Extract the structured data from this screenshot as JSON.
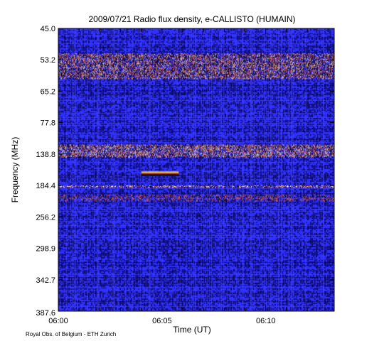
{
  "chart_data": {
    "type": "heatmap",
    "title": "2009/07/21  Radio flux density, e-CALLISTO (HUMAIN)",
    "xlabel": "Time (UT)",
    "ylabel": "Frequency (MHz)",
    "x_ticks": [
      "06:00",
      "06:05",
      "06:10"
    ],
    "x_tick_minutes": [
      0,
      5,
      10
    ],
    "x_range_minutes": [
      0,
      13.3
    ],
    "y_ticks": [
      "45.0",
      "53.2",
      "65.2",
      "77.8",
      "138.8",
      "184.4",
      "256.2",
      "298.9",
      "342.7",
      "387.6"
    ],
    "colormap": [
      "#10108a",
      "#2c2cff",
      "#000000",
      "#c04020",
      "#ffe060",
      "#ffffff"
    ],
    "features": [
      {
        "kind": "band",
        "freq_tick_from": 0.8,
        "freq_tick_to": 1.6,
        "intensity": 0.85
      },
      {
        "kind": "band",
        "freq_tick_from": 3.7,
        "freq_tick_to": 4.1,
        "intensity": 0.95
      },
      {
        "kind": "band",
        "freq_tick_from": 5.0,
        "freq_tick_to": 5.05,
        "intensity": 1.0
      },
      {
        "kind": "band",
        "freq_tick_from": 5.3,
        "freq_tick_to": 5.5,
        "intensity": 0.6
      },
      {
        "kind": "burst",
        "freq_tick": 4.6,
        "time_from_min": 4.0,
        "time_to_min": 5.8,
        "intensity": 1.0
      }
    ]
  },
  "footer": {
    "credit": "Royal Obs. of Belgium - ETH Zurich"
  }
}
